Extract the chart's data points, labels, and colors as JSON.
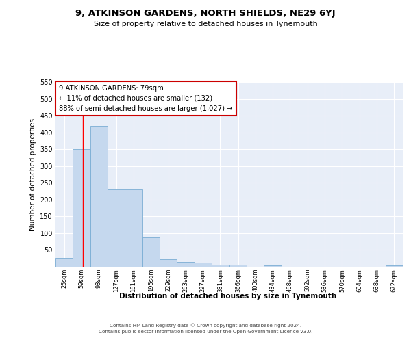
{
  "title": "9, ATKINSON GARDENS, NORTH SHIELDS, NE29 6YJ",
  "subtitle": "Size of property relative to detached houses in Tynemouth",
  "xlabel": "Distribution of detached houses by size in Tynemouth",
  "ylabel": "Number of detached properties",
  "bar_color": "#c5d8ee",
  "bar_edge_color": "#7aadd4",
  "background_color": "#e8eef8",
  "grid_color": "#ffffff",
  "annotation_box_text": "9 ATKINSON GARDENS: 79sqm\n← 11% of detached houses are smaller (132)\n88% of semi-detached houses are larger (1,027) →",
  "annotation_box_color": "#cc0000",
  "property_line_x": 79,
  "bins": [
    25,
    59,
    93,
    127,
    161,
    195,
    229,
    263,
    297,
    331,
    366,
    400,
    434,
    468,
    502,
    536,
    570,
    604,
    638,
    672,
    706
  ],
  "bar_heights": [
    27,
    350,
    420,
    231,
    231,
    88,
    23,
    15,
    13,
    7,
    6,
    0,
    5,
    0,
    0,
    0,
    0,
    0,
    0,
    5
  ],
  "ylim": [
    0,
    550
  ],
  "yticks": [
    0,
    50,
    100,
    150,
    200,
    250,
    300,
    350,
    400,
    450,
    500,
    550
  ],
  "footer_line1": "Contains HM Land Registry data © Crown copyright and database right 2024.",
  "footer_line2": "Contains public sector information licensed under the Open Government Licence v3.0."
}
